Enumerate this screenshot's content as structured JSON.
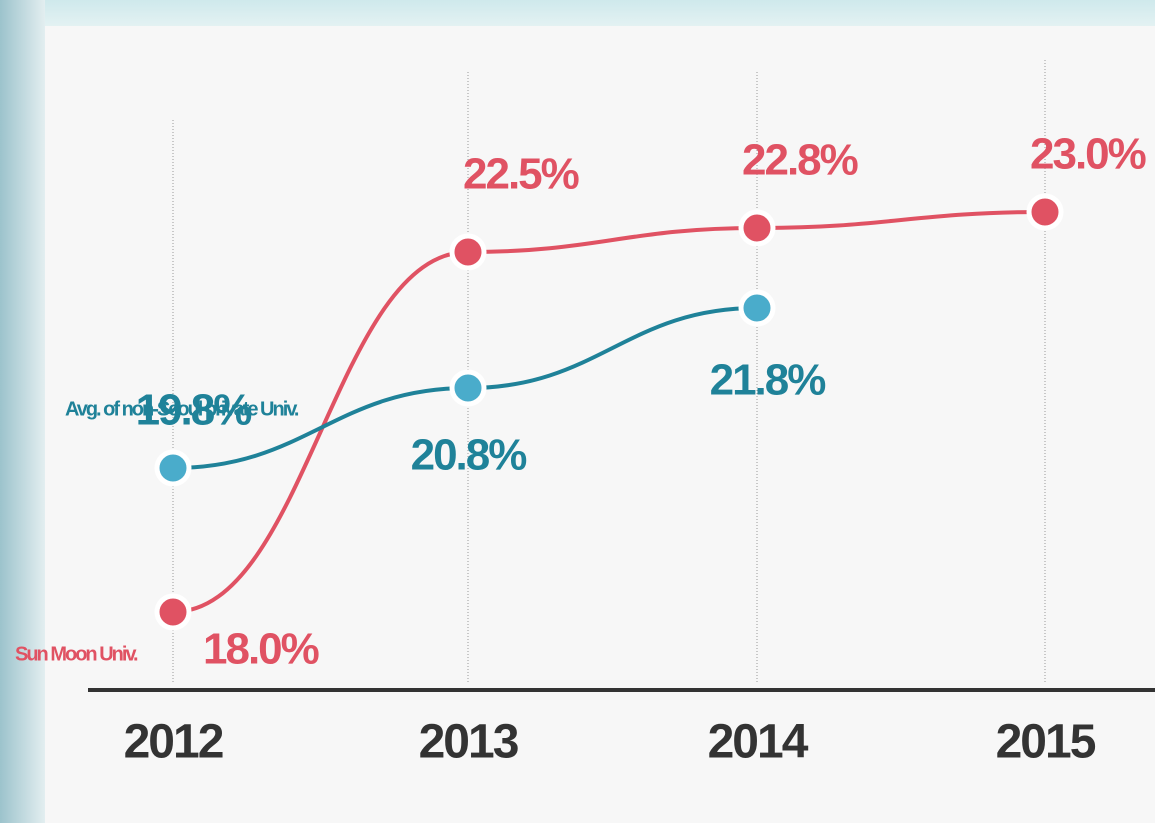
{
  "chart_data": {
    "type": "line",
    "categories": [
      "2012",
      "2013",
      "2014",
      "2015"
    ],
    "series": [
      {
        "name": "Sun Moon Univ.",
        "color": "#e05263",
        "values": [
          18.0,
          22.5,
          22.8,
          23.0
        ],
        "value_labels": [
          "18.0%",
          "22.5%",
          "22.8%",
          "23.0%"
        ]
      },
      {
        "name": "Avg. of non-Seoul private Univ.",
        "color": "#1f8299",
        "marker_color": "#4aaccb",
        "values": [
          19.8,
          20.8,
          21.8,
          null
        ],
        "value_labels": [
          "19.8%",
          "20.8%",
          "21.8%",
          null
        ]
      }
    ],
    "ylim": [
      17,
      24
    ]
  }
}
